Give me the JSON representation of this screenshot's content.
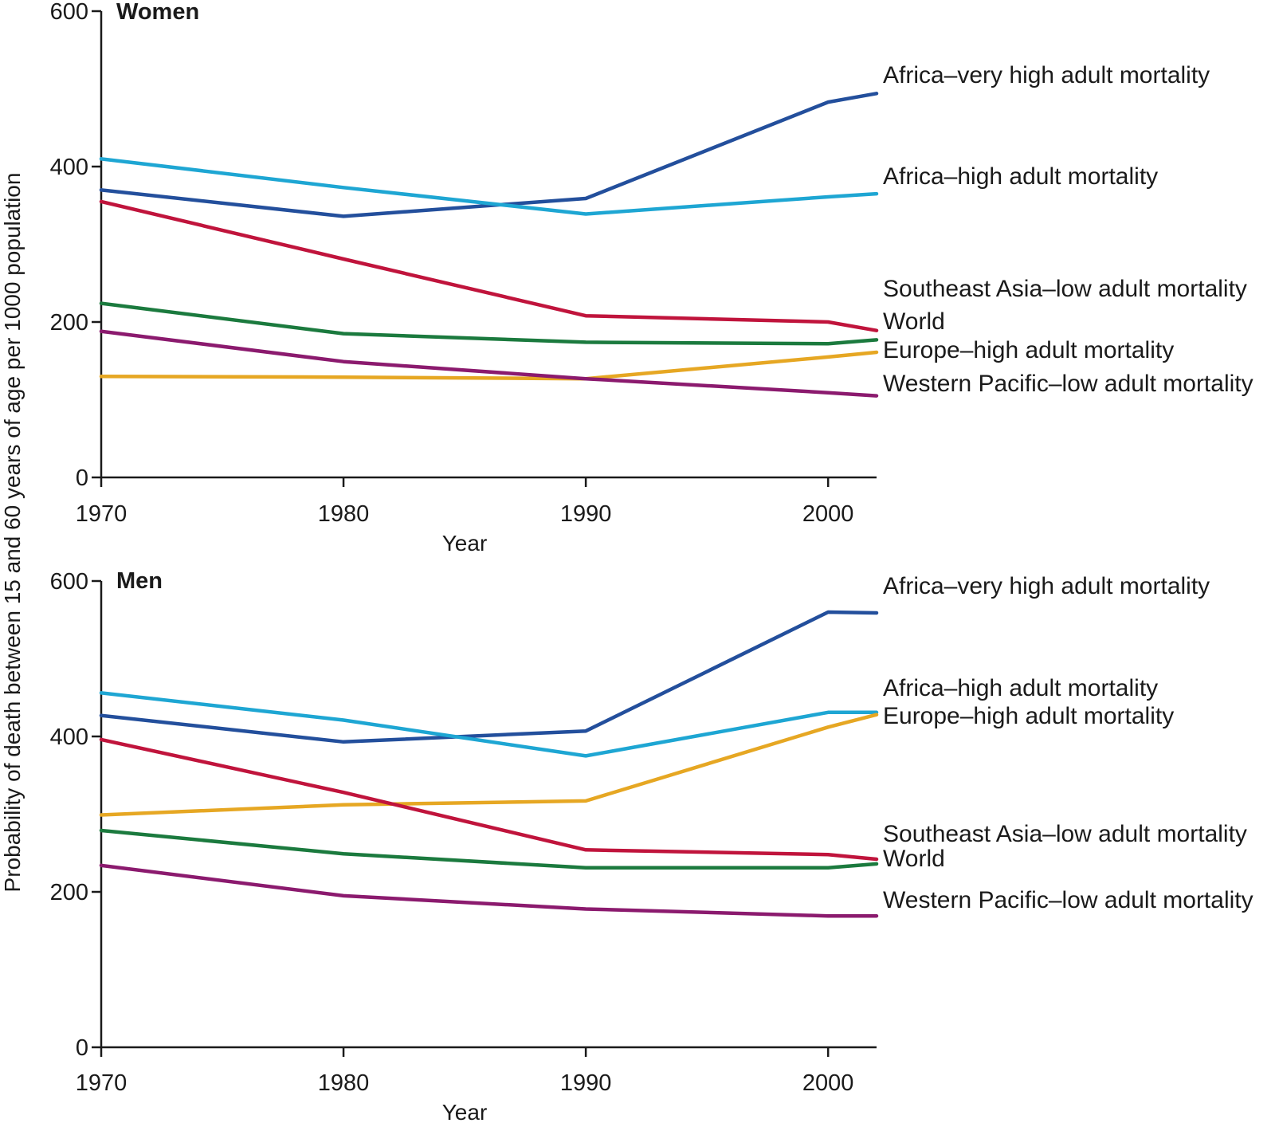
{
  "chart_data": [
    {
      "type": "line",
      "title": "Women",
      "xlabel": "Year",
      "ylabel": "Probability of death between 15 and 60 years of age per 1000 population",
      "xlim": [
        1970,
        2002
      ],
      "ylim": [
        0,
        600
      ],
      "x_ticks": [
        "1970",
        "1980",
        "1990",
        "2000"
      ],
      "y_ticks": [
        "0",
        "200",
        "400",
        "600"
      ],
      "grid": false,
      "x": [
        1970,
        1980,
        1990,
        2000,
        2002
      ],
      "series": [
        {
          "name": "Africa–very high adult mortality",
          "color": "#234f9c",
          "values": [
            370,
            336,
            359,
            483,
            494
          ]
        },
        {
          "name": "Africa–high adult mortality",
          "color": "#1ea6d3",
          "values": [
            410,
            373,
            339,
            361,
            365
          ]
        },
        {
          "name": "Southeast Asia–low adult mortality",
          "color": "#c0143c",
          "values": [
            355,
            281,
            208,
            200,
            189
          ]
        },
        {
          "name": "World",
          "color": "#1b7a3e",
          "values": [
            224,
            185,
            174,
            172,
            177
          ]
        },
        {
          "name": "Europe–high adult mortality",
          "color": "#e6a723",
          "values": [
            130,
            129,
            127,
            155,
            161
          ]
        },
        {
          "name": "Western Pacific–low adult mortality",
          "color": "#8b1a6e",
          "values": [
            188,
            149,
            127,
            109,
            105
          ]
        }
      ]
    },
    {
      "type": "line",
      "title": "Men",
      "xlabel": "Year",
      "ylabel": "Probability of death between 15 and 60 years of age per 1000 population",
      "xlim": [
        1970,
        2002
      ],
      "ylim": [
        0,
        600
      ],
      "x_ticks": [
        "1970",
        "1980",
        "1990",
        "2000"
      ],
      "y_ticks": [
        "0",
        "200",
        "400",
        "600"
      ],
      "grid": false,
      "x": [
        1970,
        1980,
        1990,
        2000,
        2002
      ],
      "series": [
        {
          "name": "Africa–very high adult mortality",
          "color": "#234f9c",
          "values": [
            427,
            393,
            407,
            560,
            559
          ]
        },
        {
          "name": "Africa–high adult mortality",
          "color": "#1ea6d3",
          "values": [
            456,
            421,
            375,
            431,
            431
          ]
        },
        {
          "name": "Europe–high adult mortality",
          "color": "#e6a723",
          "values": [
            299,
            312,
            317,
            412,
            428
          ]
        },
        {
          "name": "Southeast Asia–low adult mortality",
          "color": "#c0143c",
          "values": [
            396,
            328,
            254,
            248,
            242
          ]
        },
        {
          "name": "World",
          "color": "#1b7a3e",
          "values": [
            279,
            249,
            231,
            231,
            236
          ]
        },
        {
          "name": "Western Pacific–low adult mortality",
          "color": "#8b1a6e",
          "values": [
            234,
            195,
            178,
            169,
            169
          ]
        }
      ]
    }
  ],
  "shared_ylabel": "Probability of death between 15 and 60 years of age per 1000 population"
}
